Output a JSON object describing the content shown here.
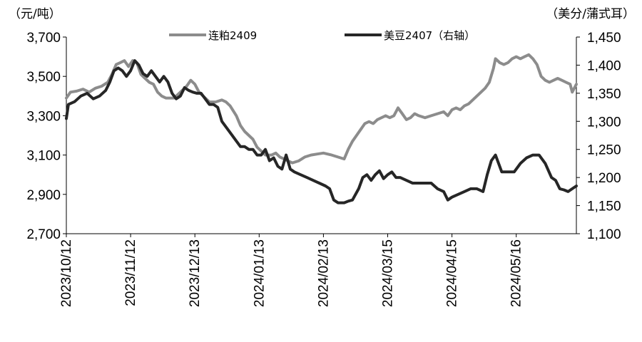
{
  "chart_data": {
    "type": "line",
    "left_axis_unit": "（元/吨）",
    "right_axis_unit": "（美分/蒲式耳）",
    "y_left": {
      "range": [
        2700,
        3700
      ],
      "ticks": [
        "2,700",
        "2,900",
        "3,100",
        "3,300",
        "3,500",
        "3,700"
      ]
    },
    "y_right": {
      "range": [
        1100,
        1450
      ],
      "ticks": [
        "1,100",
        "1,150",
        "1,200",
        "1,250",
        "1,300",
        "1,350",
        "1,400",
        "1,450"
      ]
    },
    "x_ticks": [
      "2023/10/12",
      "2023/11/12",
      "2023/12/13",
      "2024/01/13",
      "2024/02/13",
      "2024/03/15",
      "2024/04/15",
      "2024/05/16"
    ],
    "x_range": [
      "2023-10-12",
      "2024-06-14"
    ],
    "legend_position": "top",
    "colors": {
      "dalian": "#8c8c8c",
      "cbot": "#262626"
    },
    "series": [
      {
        "name": "连粕2409",
        "axis": "left",
        "points": [
          [
            "2023-10-12",
            3390
          ],
          [
            "2023-10-14",
            3420
          ],
          [
            "2023-10-17",
            3425
          ],
          [
            "2023-10-20",
            3435
          ],
          [
            "2023-10-23",
            3420
          ],
          [
            "2023-10-26",
            3440
          ],
          [
            "2023-10-29",
            3450
          ],
          [
            "2023-11-01",
            3470
          ],
          [
            "2023-11-03",
            3510
          ],
          [
            "2023-11-05",
            3560
          ],
          [
            "2023-11-07",
            3570
          ],
          [
            "2023-11-09",
            3580
          ],
          [
            "2023-11-11",
            3550
          ],
          [
            "2023-11-13",
            3580
          ],
          [
            "2023-11-15",
            3570
          ],
          [
            "2023-11-17",
            3510
          ],
          [
            "2023-11-19",
            3490
          ],
          [
            "2023-11-21",
            3470
          ],
          [
            "2023-11-23",
            3460
          ],
          [
            "2023-11-25",
            3420
          ],
          [
            "2023-11-27",
            3400
          ],
          [
            "2023-11-29",
            3390
          ],
          [
            "2023-12-01",
            3390
          ],
          [
            "2023-12-03",
            3390
          ],
          [
            "2023-12-06",
            3420
          ],
          [
            "2023-12-09",
            3450
          ],
          [
            "2023-12-11",
            3480
          ],
          [
            "2023-12-13",
            3460
          ],
          [
            "2023-12-15",
            3420
          ],
          [
            "2023-12-17",
            3400
          ],
          [
            "2023-12-20",
            3370
          ],
          [
            "2023-12-23",
            3370
          ],
          [
            "2023-12-26",
            3380
          ],
          [
            "2023-12-28",
            3370
          ],
          [
            "2023-12-30",
            3350
          ],
          [
            "2024-01-02",
            3300
          ],
          [
            "2024-01-04",
            3250
          ],
          [
            "2024-01-06",
            3220
          ],
          [
            "2024-01-08",
            3200
          ],
          [
            "2024-01-10",
            3180
          ],
          [
            "2024-01-12",
            3140
          ],
          [
            "2024-01-14",
            3120
          ],
          [
            "2024-01-16",
            3100
          ],
          [
            "2024-01-19",
            3100
          ],
          [
            "2024-01-21",
            3110
          ],
          [
            "2024-01-23",
            3090
          ],
          [
            "2024-01-25",
            3080
          ],
          [
            "2024-01-27",
            3070
          ],
          [
            "2024-01-29",
            3060
          ],
          [
            "2024-02-01",
            3070
          ],
          [
            "2024-02-04",
            3090
          ],
          [
            "2024-02-07",
            3100
          ],
          [
            "2024-02-10",
            3105
          ],
          [
            "2024-02-13",
            3110
          ],
          [
            "2024-02-17",
            3100
          ],
          [
            "2024-02-20",
            3090
          ],
          [
            "2024-02-23",
            3080
          ],
          [
            "2024-02-25",
            3130
          ],
          [
            "2024-02-27",
            3170
          ],
          [
            "2024-02-29",
            3200
          ],
          [
            "2024-03-02",
            3230
          ],
          [
            "2024-03-04",
            3260
          ],
          [
            "2024-03-06",
            3270
          ],
          [
            "2024-03-08",
            3260
          ],
          [
            "2024-03-10",
            3280
          ],
          [
            "2024-03-12",
            3290
          ],
          [
            "2024-03-14",
            3300
          ],
          [
            "2024-03-16",
            3290
          ],
          [
            "2024-03-18",
            3300
          ],
          [
            "2024-03-20",
            3340
          ],
          [
            "2024-03-22",
            3310
          ],
          [
            "2024-03-24",
            3280
          ],
          [
            "2024-03-26",
            3290
          ],
          [
            "2024-03-28",
            3310
          ],
          [
            "2024-03-30",
            3300
          ],
          [
            "2024-04-02",
            3290
          ],
          [
            "2024-04-05",
            3300
          ],
          [
            "2024-04-08",
            3310
          ],
          [
            "2024-04-11",
            3320
          ],
          [
            "2024-04-13",
            3300
          ],
          [
            "2024-04-15",
            3330
          ],
          [
            "2024-04-17",
            3340
          ],
          [
            "2024-04-19",
            3330
          ],
          [
            "2024-04-21",
            3350
          ],
          [
            "2024-04-23",
            3360
          ],
          [
            "2024-04-25",
            3380
          ],
          [
            "2024-04-27",
            3400
          ],
          [
            "2024-04-29",
            3420
          ],
          [
            "2024-05-01",
            3440
          ],
          [
            "2024-05-03",
            3470
          ],
          [
            "2024-05-05",
            3540
          ],
          [
            "2024-05-06",
            3590
          ],
          [
            "2024-05-08",
            3570
          ],
          [
            "2024-05-10",
            3560
          ],
          [
            "2024-05-12",
            3570
          ],
          [
            "2024-05-14",
            3590
          ],
          [
            "2024-05-16",
            3600
          ],
          [
            "2024-05-18",
            3590
          ],
          [
            "2024-05-20",
            3600
          ],
          [
            "2024-05-22",
            3610
          ],
          [
            "2024-05-24",
            3590
          ],
          [
            "2024-05-26",
            3560
          ],
          [
            "2024-05-28",
            3500
          ],
          [
            "2024-05-30",
            3480
          ],
          [
            "2024-06-01",
            3470
          ],
          [
            "2024-06-03",
            3480
          ],
          [
            "2024-06-05",
            3490
          ],
          [
            "2024-06-07",
            3480
          ],
          [
            "2024-06-09",
            3470
          ],
          [
            "2024-06-11",
            3460
          ],
          [
            "2024-06-12",
            3420
          ],
          [
            "2024-06-14",
            3460
          ]
        ]
      },
      {
        "name": "美豆2407（右轴）",
        "axis": "right",
        "points": [
          [
            "2023-10-12",
            1305
          ],
          [
            "2023-10-13",
            1330
          ],
          [
            "2023-10-16",
            1335
          ],
          [
            "2023-10-19",
            1345
          ],
          [
            "2023-10-22",
            1350
          ],
          [
            "2023-10-25",
            1340
          ],
          [
            "2023-10-28",
            1345
          ],
          [
            "2023-10-31",
            1355
          ],
          [
            "2023-11-02",
            1370
          ],
          [
            "2023-11-04",
            1390
          ],
          [
            "2023-11-06",
            1395
          ],
          [
            "2023-11-08",
            1390
          ],
          [
            "2023-11-10",
            1380
          ],
          [
            "2023-11-12",
            1390
          ],
          [
            "2023-11-14",
            1408
          ],
          [
            "2023-11-16",
            1400
          ],
          [
            "2023-11-18",
            1385
          ],
          [
            "2023-11-20",
            1380
          ],
          [
            "2023-11-22",
            1390
          ],
          [
            "2023-11-24",
            1380
          ],
          [
            "2023-11-26",
            1370
          ],
          [
            "2023-11-28",
            1380
          ],
          [
            "2023-11-30",
            1370
          ],
          [
            "2023-12-02",
            1350
          ],
          [
            "2023-12-04",
            1340
          ],
          [
            "2023-12-06",
            1345
          ],
          [
            "2023-12-08",
            1360
          ],
          [
            "2023-12-10",
            1355
          ],
          [
            "2023-12-12",
            1352
          ],
          [
            "2023-12-14",
            1350
          ],
          [
            "2023-12-16",
            1350
          ],
          [
            "2023-12-18",
            1340
          ],
          [
            "2023-12-20",
            1330
          ],
          [
            "2023-12-22",
            1330
          ],
          [
            "2023-12-24",
            1325
          ],
          [
            "2023-12-26",
            1300
          ],
          [
            "2023-12-28",
            1290
          ],
          [
            "2023-12-30",
            1280
          ],
          [
            "2024-01-02",
            1265
          ],
          [
            "2024-01-04",
            1255
          ],
          [
            "2024-01-06",
            1255
          ],
          [
            "2024-01-08",
            1250
          ],
          [
            "2024-01-10",
            1250
          ],
          [
            "2024-01-12",
            1240
          ],
          [
            "2024-01-14",
            1240
          ],
          [
            "2024-01-16",
            1250
          ],
          [
            "2024-01-18",
            1230
          ],
          [
            "2024-01-20",
            1235
          ],
          [
            "2024-01-22",
            1220
          ],
          [
            "2024-01-24",
            1215
          ],
          [
            "2024-01-26",
            1240
          ],
          [
            "2024-01-28",
            1215
          ],
          [
            "2024-01-30",
            1210
          ],
          [
            "2024-02-02",
            1205
          ],
          [
            "2024-02-05",
            1200
          ],
          [
            "2024-02-08",
            1195
          ],
          [
            "2024-02-11",
            1190
          ],
          [
            "2024-02-14",
            1185
          ],
          [
            "2024-02-16",
            1180
          ],
          [
            "2024-02-18",
            1160
          ],
          [
            "2024-02-20",
            1155
          ],
          [
            "2024-02-23",
            1155
          ],
          [
            "2024-02-25",
            1158
          ],
          [
            "2024-02-27",
            1160
          ],
          [
            "2024-03-01",
            1180
          ],
          [
            "2024-03-03",
            1200
          ],
          [
            "2024-03-05",
            1205
          ],
          [
            "2024-03-07",
            1195
          ],
          [
            "2024-03-09",
            1205
          ],
          [
            "2024-03-11",
            1212
          ],
          [
            "2024-03-13",
            1198
          ],
          [
            "2024-03-15",
            1205
          ],
          [
            "2024-03-17",
            1210
          ],
          [
            "2024-03-19",
            1200
          ],
          [
            "2024-03-21",
            1200
          ],
          [
            "2024-03-24",
            1195
          ],
          [
            "2024-03-27",
            1190
          ],
          [
            "2024-03-30",
            1190
          ],
          [
            "2024-04-02",
            1190
          ],
          [
            "2024-04-05",
            1190
          ],
          [
            "2024-04-08",
            1180
          ],
          [
            "2024-04-11",
            1175
          ],
          [
            "2024-04-13",
            1160
          ],
          [
            "2024-04-15",
            1165
          ],
          [
            "2024-04-18",
            1170
          ],
          [
            "2024-04-21",
            1175
          ],
          [
            "2024-04-24",
            1180
          ],
          [
            "2024-04-27",
            1180
          ],
          [
            "2024-04-30",
            1175
          ],
          [
            "2024-05-02",
            1205
          ],
          [
            "2024-05-04",
            1230
          ],
          [
            "2024-05-06",
            1240
          ],
          [
            "2024-05-09",
            1210
          ],
          [
            "2024-05-12",
            1210
          ],
          [
            "2024-05-15",
            1210
          ],
          [
            "2024-05-18",
            1225
          ],
          [
            "2024-05-21",
            1235
          ],
          [
            "2024-05-24",
            1240
          ],
          [
            "2024-05-27",
            1240
          ],
          [
            "2024-05-30",
            1225
          ],
          [
            "2024-06-02",
            1200
          ],
          [
            "2024-06-04",
            1195
          ],
          [
            "2024-06-06",
            1180
          ],
          [
            "2024-06-08",
            1178
          ],
          [
            "2024-06-10",
            1175
          ],
          [
            "2024-06-12",
            1180
          ],
          [
            "2024-06-14",
            1185
          ]
        ]
      }
    ]
  }
}
